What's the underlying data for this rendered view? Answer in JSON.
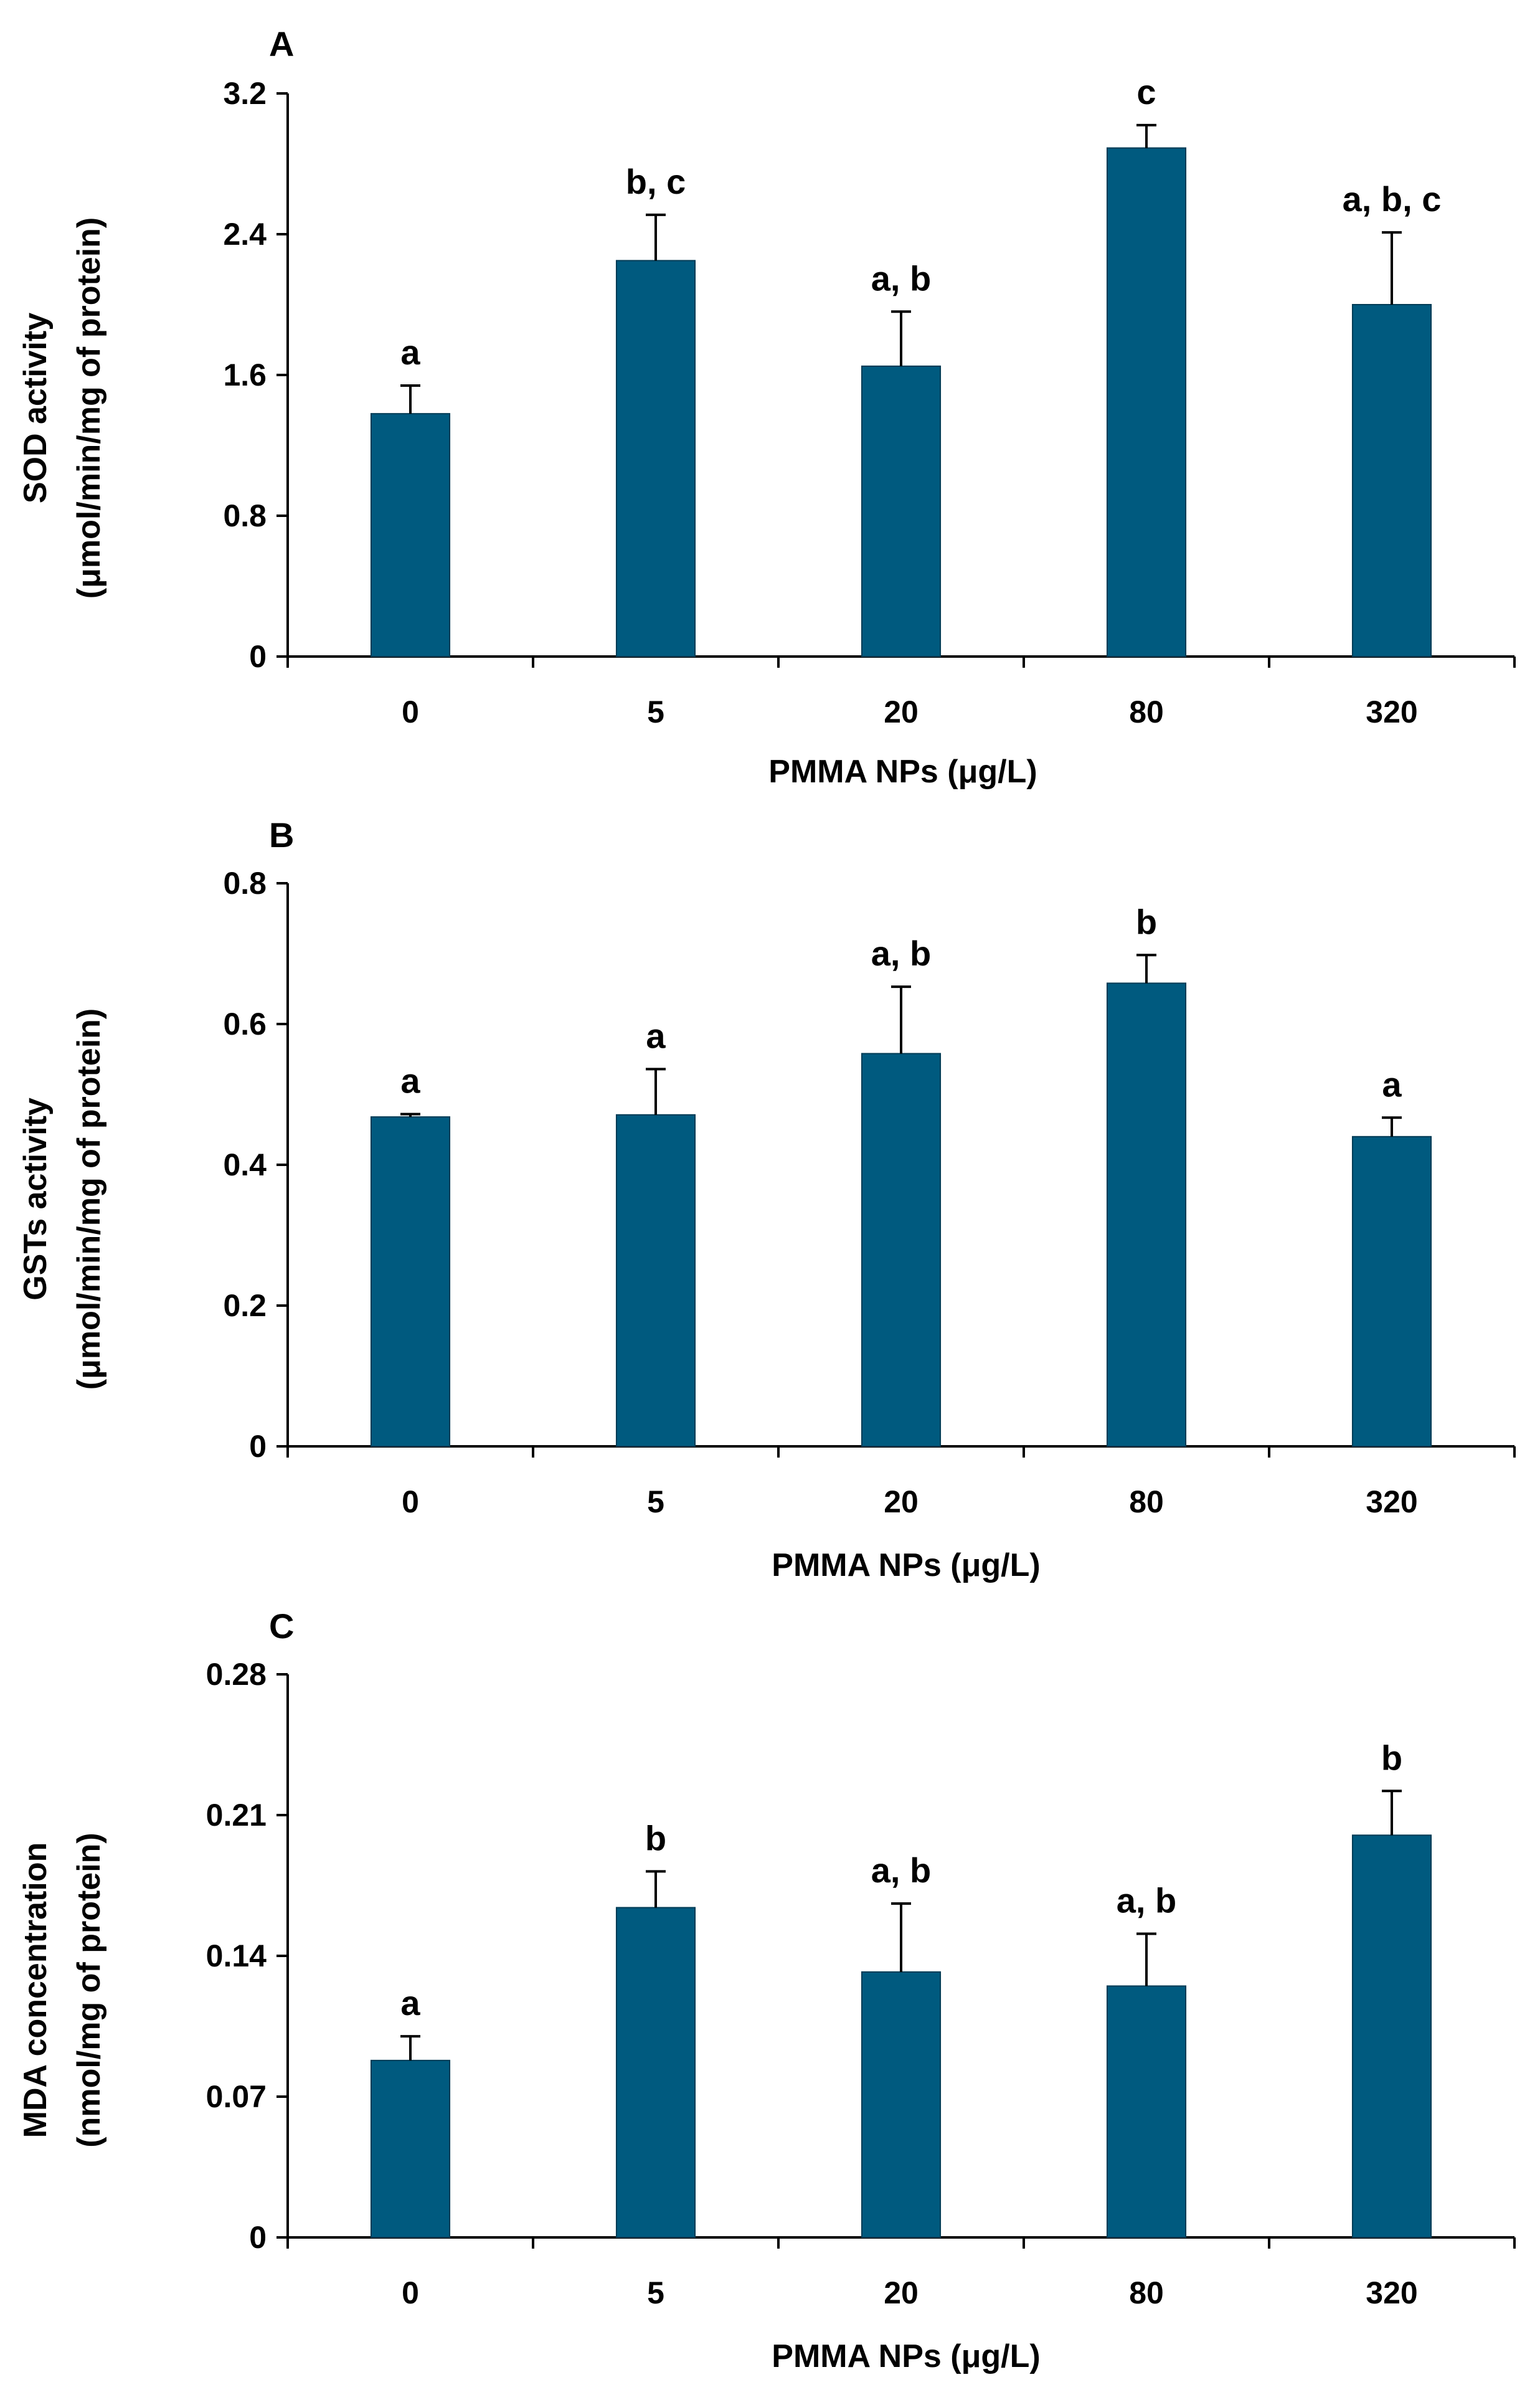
{
  "chart_data": [
    {
      "type": "bar",
      "panel": "A",
      "categories": [
        "0",
        "5",
        "20",
        "80",
        "320"
      ],
      "values": [
        1.38,
        2.25,
        1.65,
        2.89,
        2.0
      ],
      "errors": [
        0.16,
        0.26,
        0.31,
        0.13,
        0.41
      ],
      "significance": [
        "a",
        "b, c",
        "a, b",
        "c",
        "a, b, c"
      ],
      "xlabel": "PMMA NPs (μg/L)",
      "ylabel_line1": "SOD activity",
      "ylabel_line2": "(μmol/min/mg of protein)",
      "ylim": [
        0,
        3.2
      ],
      "yticks": [
        0,
        0.8,
        1.6,
        2.4,
        3.2
      ],
      "ytick_labels": [
        "0",
        "0.8",
        "1.6",
        "2.4",
        "3.2"
      ],
      "bar_color": "#005a7f"
    },
    {
      "type": "bar",
      "panel": "B",
      "categories": [
        "0",
        "5",
        "20",
        "80",
        "320"
      ],
      "values": [
        0.468,
        0.471,
        0.558,
        0.658,
        0.44
      ],
      "errors": [
        0.004,
        0.065,
        0.095,
        0.04,
        0.027
      ],
      "significance": [
        "a",
        "a",
        "a, b",
        "b",
        "a"
      ],
      "xlabel": "PMMA NPs (μg/L)",
      "ylabel_line1": "GSTs activity",
      "ylabel_line2": "(μmol/min/mg of protein)",
      "ylim": [
        0,
        0.8
      ],
      "yticks": [
        0,
        0.2,
        0.4,
        0.6,
        0.8
      ],
      "ytick_labels": [
        "0",
        "0.2",
        "0.4",
        "0.6",
        "0.8"
      ],
      "bar_color": "#005a7f"
    },
    {
      "type": "bar",
      "panel": "C",
      "categories": [
        "0",
        "5",
        "20",
        "80",
        "320"
      ],
      "values": [
        0.088,
        0.164,
        0.132,
        0.125,
        0.2
      ],
      "errors": [
        0.012,
        0.018,
        0.034,
        0.026,
        0.022
      ],
      "significance": [
        "a",
        "b",
        "a, b",
        "a, b",
        "b"
      ],
      "xlabel": "PMMA NPs (μg/L)",
      "ylabel_line1": "MDA concentration",
      "ylabel_line2": "(nmol/mg of protein)",
      "ylim": [
        0,
        0.28
      ],
      "yticks": [
        0,
        0.07,
        0.14,
        0.21,
        0.28
      ],
      "ytick_labels": [
        "0",
        "0.07",
        "0.14",
        "0.21",
        "0.28"
      ],
      "bar_color": "#005a7f"
    }
  ]
}
